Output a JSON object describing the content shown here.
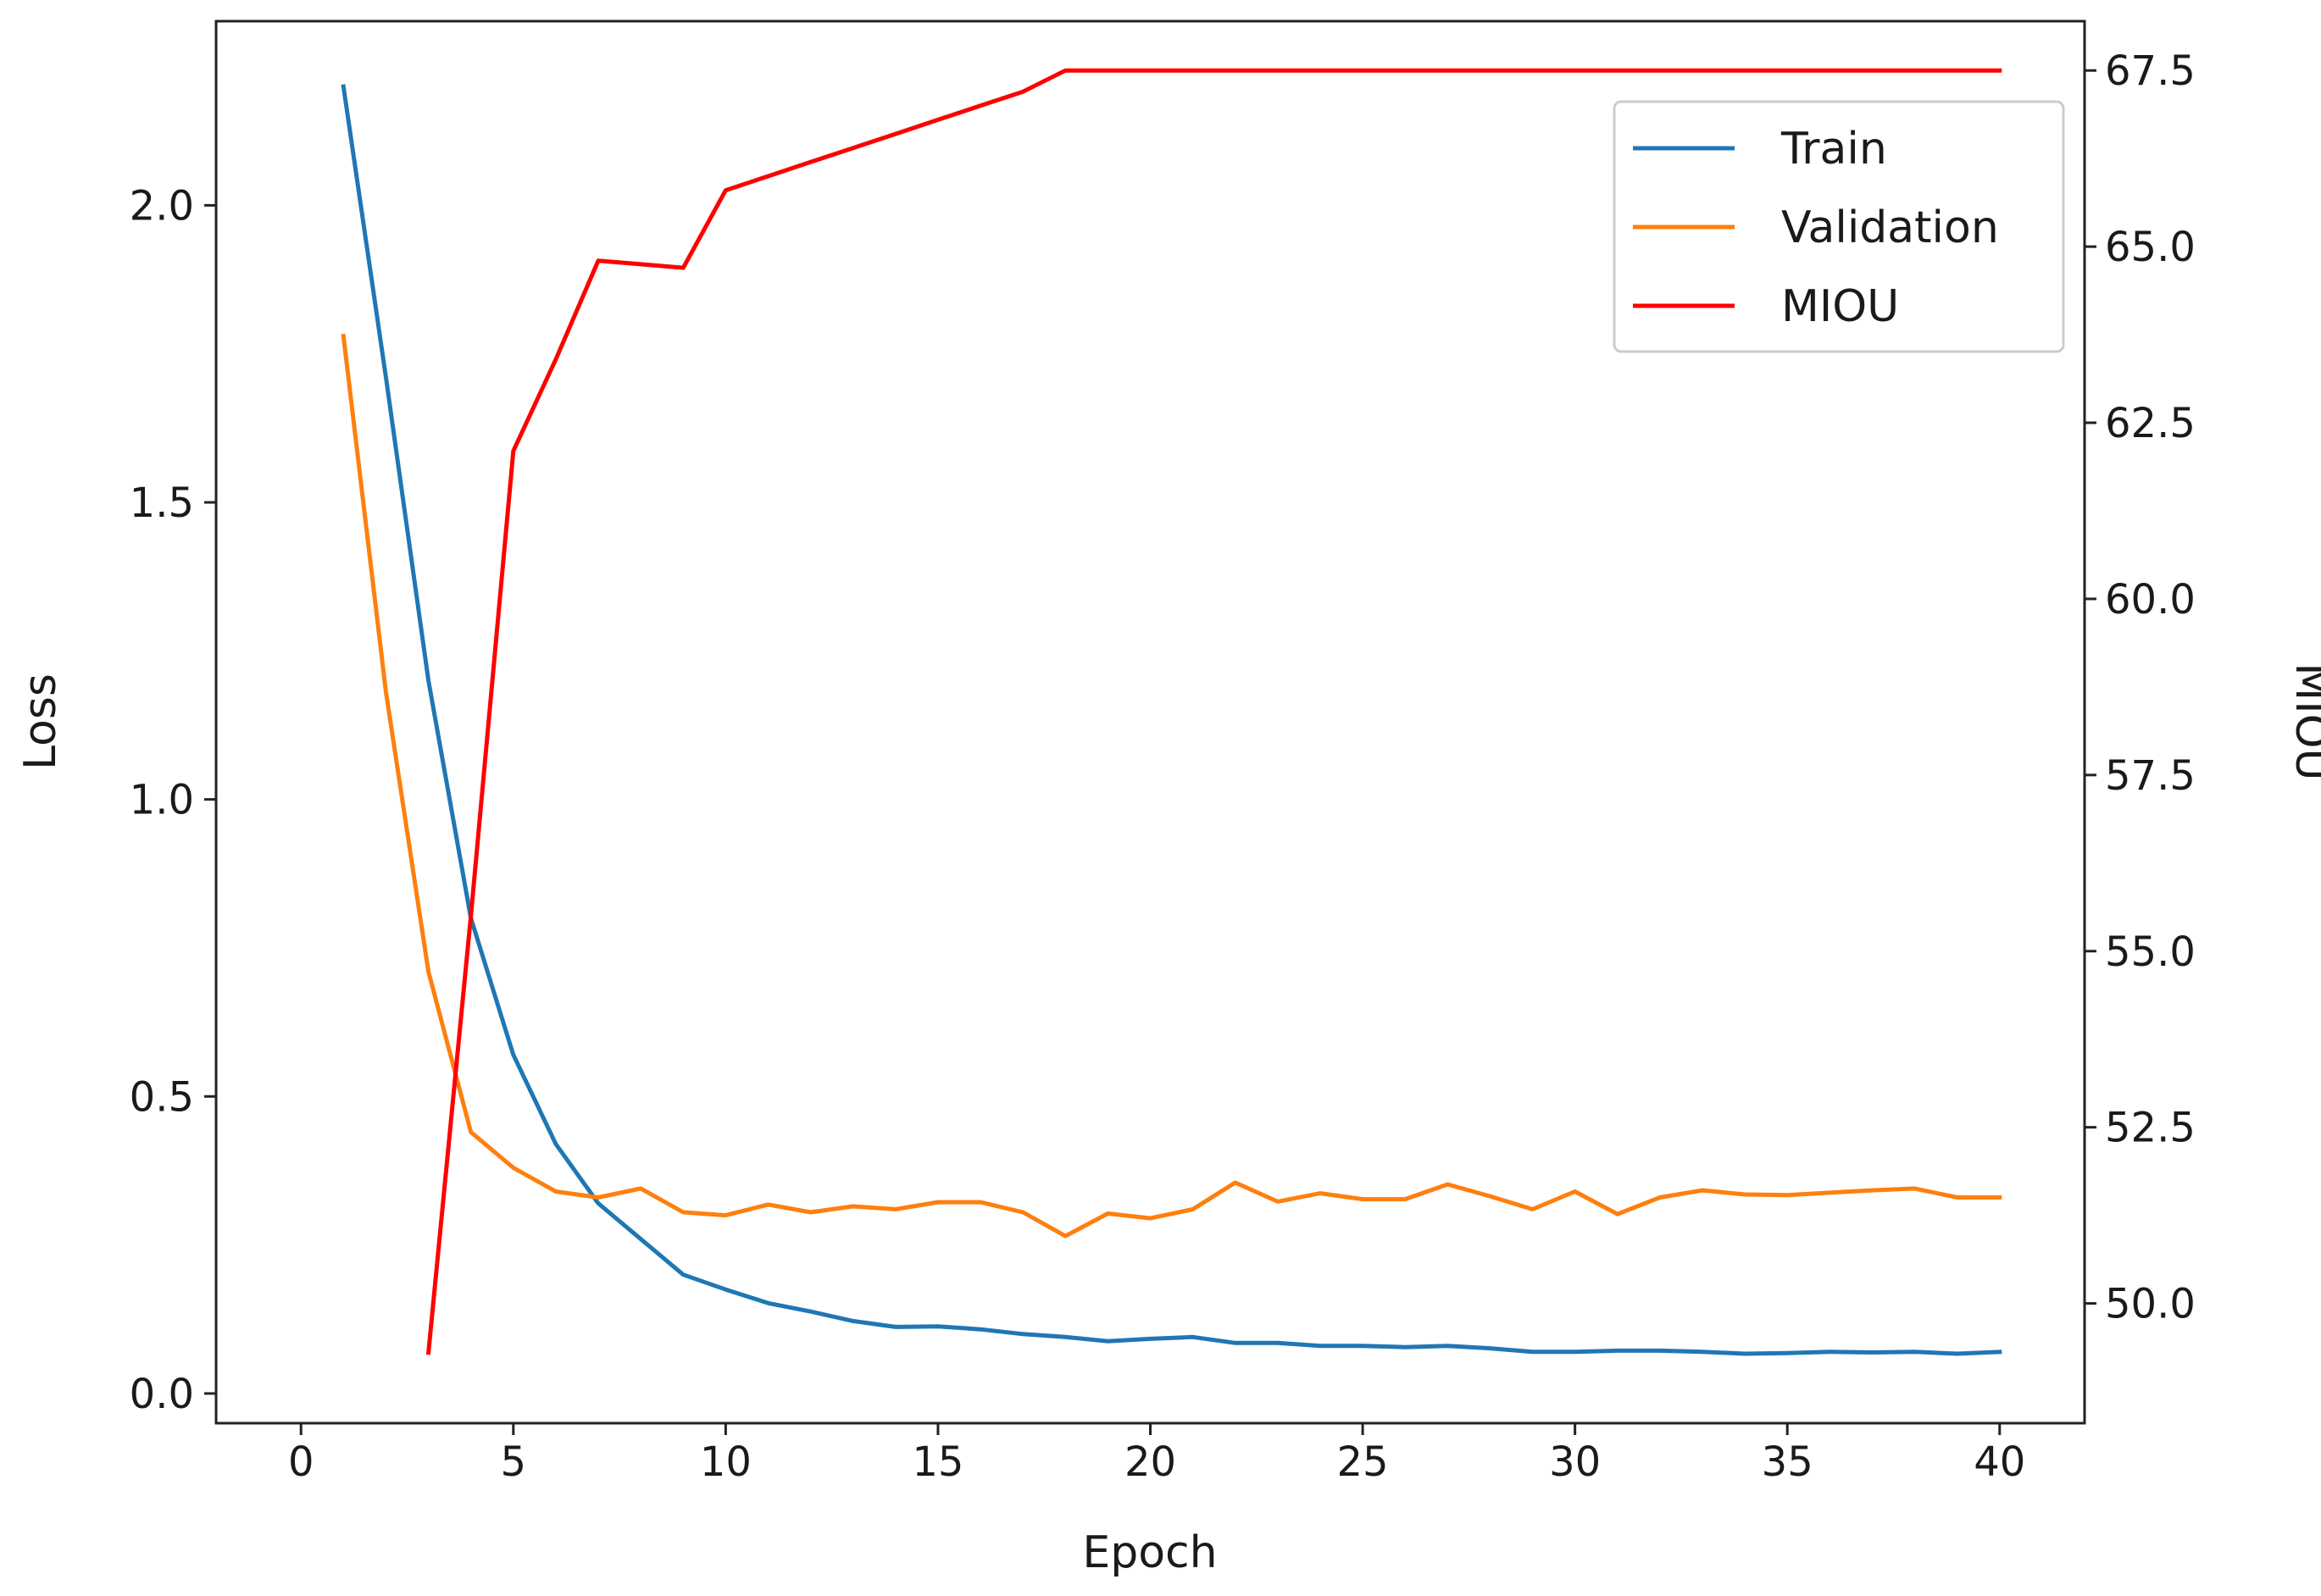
{
  "chart_data": {
    "type": "line",
    "xlabel": "Epoch",
    "ylabel": "Loss",
    "y2label": "MIOU",
    "xlim": [
      -2,
      42
    ],
    "ylim": [
      -0.05,
      2.31
    ],
    "y2lim": [
      48.3,
      68.2
    ],
    "xticks": [
      0,
      5,
      10,
      15,
      20,
      25,
      30,
      35,
      40
    ],
    "yticks": [
      0.0,
      0.5,
      1.0,
      1.5,
      2.0
    ],
    "ytick_labels": [
      "0.0",
      "0.5",
      "1.0",
      "1.5",
      "2.0"
    ],
    "y2ticks": [
      50.0,
      52.5,
      55.0,
      57.5,
      60.0,
      62.5,
      65.0,
      67.5
    ],
    "y2tick_labels": [
      "50.0",
      "52.5",
      "55.0",
      "57.5",
      "60.0",
      "62.5",
      "65.0",
      "67.5"
    ],
    "grid": false,
    "legend_position": "top-right",
    "series": [
      {
        "name": "Train",
        "axis": "left",
        "color": "#1f77b4",
        "x": [
          1,
          2,
          3,
          4,
          5,
          6,
          7,
          8,
          9,
          10,
          11,
          12,
          13,
          14,
          15,
          16,
          17,
          18,
          19,
          20,
          21,
          22,
          23,
          24,
          25,
          26,
          27,
          28,
          29,
          30,
          31,
          32,
          33,
          34,
          35,
          36,
          37,
          38,
          39,
          40
        ],
        "values": [
          2.2,
          1.71,
          1.2,
          0.8,
          0.57,
          0.42,
          0.32,
          0.26,
          0.2,
          0.175,
          0.152,
          0.138,
          0.122,
          0.112,
          0.113,
          0.108,
          0.1,
          0.095,
          0.088,
          0.092,
          0.095,
          0.085,
          0.085,
          0.08,
          0.08,
          0.078,
          0.08,
          0.076,
          0.07,
          0.07,
          0.072,
          0.072,
          0.07,
          0.067,
          0.068,
          0.07,
          0.069,
          0.07,
          0.067,
          0.07
        ]
      },
      {
        "name": "Validation",
        "axis": "left",
        "color": "#ff7f0e",
        "x": [
          1,
          2,
          3,
          4,
          5,
          6,
          7,
          8,
          9,
          10,
          11,
          12,
          13,
          14,
          15,
          16,
          17,
          18,
          19,
          20,
          21,
          22,
          23,
          24,
          25,
          26,
          27,
          28,
          29,
          30,
          31,
          32,
          33,
          34,
          35,
          36,
          37,
          38,
          39,
          40
        ],
        "values": [
          1.78,
          1.18,
          0.71,
          0.44,
          0.38,
          0.34,
          0.33,
          0.345,
          0.305,
          0.3,
          0.318,
          0.305,
          0.315,
          0.31,
          0.322,
          0.322,
          0.305,
          0.265,
          0.303,
          0.295,
          0.31,
          0.355,
          0.323,
          0.337,
          0.327,
          0.327,
          0.352,
          0.332,
          0.31,
          0.34,
          0.302,
          0.33,
          0.342,
          0.335,
          0.334,
          0.338,
          0.342,
          0.345,
          0.33,
          0.33
        ]
      },
      {
        "name": "MIOU",
        "axis": "right",
        "color": "#ff0000",
        "x": [
          3,
          4,
          5,
          6,
          7,
          8,
          9,
          10,
          11,
          12,
          13,
          14,
          15,
          16,
          17,
          18,
          19,
          20,
          21,
          22,
          23,
          24,
          25,
          26,
          27,
          28,
          29,
          30,
          31,
          32,
          33,
          34,
          35,
          36,
          37,
          38,
          39,
          40
        ],
        "values": [
          49.3,
          55.5,
          62.1,
          63.4,
          64.8,
          64.75,
          64.7,
          65.8,
          66.0,
          66.2,
          66.4,
          66.6,
          66.8,
          67.0,
          67.2,
          67.5,
          67.5,
          67.5,
          67.5,
          67.5,
          67.5,
          67.5,
          67.5,
          67.5,
          67.5,
          67.5,
          67.5,
          67.5,
          67.5,
          67.5,
          67.5,
          67.5,
          67.5,
          67.5,
          67.5,
          67.5,
          67.5,
          67.5
        ]
      }
    ]
  }
}
